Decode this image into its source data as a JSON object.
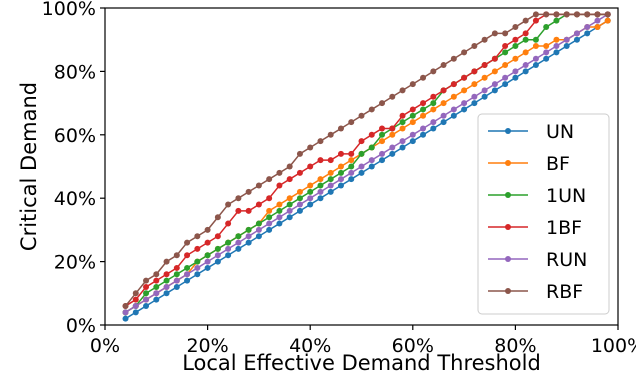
{
  "chart_data": {
    "type": "line",
    "title": "",
    "xlabel": "Local Effective Demand Threshold",
    "ylabel": "Critical Demand",
    "xlim": [
      0,
      1
    ],
    "ylim": [
      0,
      1
    ],
    "x_ticks": [
      0,
      0.2,
      0.4,
      0.6,
      0.8,
      1.0
    ],
    "x_tick_labels": [
      "0%",
      "20%",
      "40%",
      "60%",
      "80%",
      "100%"
    ],
    "y_ticks": [
      0,
      0.2,
      0.4,
      0.6,
      0.8,
      1.0
    ],
    "y_tick_labels": [
      "0%",
      "20%",
      "40%",
      "60%",
      "80%",
      "100%"
    ],
    "grid": false,
    "legend_position": "lower-right",
    "x": [
      0.04,
      0.06,
      0.08,
      0.1,
      0.12,
      0.14,
      0.16,
      0.18,
      0.2,
      0.22,
      0.24,
      0.26,
      0.28,
      0.3,
      0.32,
      0.34,
      0.36,
      0.38,
      0.4,
      0.42,
      0.44,
      0.46,
      0.48,
      0.5,
      0.52,
      0.54,
      0.56,
      0.58,
      0.6,
      0.62,
      0.64,
      0.66,
      0.68,
      0.7,
      0.72,
      0.74,
      0.76,
      0.78,
      0.8,
      0.82,
      0.84,
      0.86,
      0.88,
      0.9,
      0.92,
      0.94,
      0.96,
      0.98
    ],
    "series": [
      {
        "name": "UN",
        "color": "#1f77b4",
        "values": [
          0.02,
          0.04,
          0.06,
          0.08,
          0.1,
          0.12,
          0.14,
          0.16,
          0.18,
          0.2,
          0.22,
          0.24,
          0.26,
          0.28,
          0.3,
          0.32,
          0.34,
          0.36,
          0.38,
          0.4,
          0.42,
          0.44,
          0.46,
          0.48,
          0.5,
          0.52,
          0.54,
          0.56,
          0.58,
          0.6,
          0.62,
          0.64,
          0.66,
          0.68,
          0.7,
          0.72,
          0.74,
          0.76,
          0.78,
          0.8,
          0.82,
          0.84,
          0.86,
          0.88,
          0.9,
          0.92,
          0.94,
          0.96
        ]
      },
      {
        "name": "BF",
        "color": "#ff7f0e",
        "values": [
          0.04,
          0.06,
          0.08,
          0.1,
          0.12,
          0.14,
          0.16,
          0.2,
          0.22,
          0.24,
          0.26,
          0.28,
          0.3,
          0.32,
          0.36,
          0.38,
          0.4,
          0.42,
          0.44,
          0.46,
          0.48,
          0.5,
          0.52,
          0.54,
          0.56,
          0.58,
          0.6,
          0.62,
          0.64,
          0.66,
          0.68,
          0.7,
          0.72,
          0.74,
          0.76,
          0.78,
          0.8,
          0.82,
          0.84,
          0.86,
          0.88,
          0.88,
          0.9,
          0.9,
          0.92,
          0.94,
          0.94,
          0.96
        ]
      },
      {
        "name": "1UN",
        "color": "#2ca02c",
        "values": [
          0.04,
          0.06,
          0.1,
          0.12,
          0.14,
          0.16,
          0.18,
          0.2,
          0.22,
          0.24,
          0.26,
          0.28,
          0.3,
          0.32,
          0.34,
          0.36,
          0.38,
          0.4,
          0.42,
          0.44,
          0.46,
          0.48,
          0.5,
          0.54,
          0.56,
          0.6,
          0.62,
          0.64,
          0.66,
          0.68,
          0.7,
          0.74,
          0.76,
          0.78,
          0.8,
          0.82,
          0.84,
          0.86,
          0.88,
          0.9,
          0.9,
          0.94,
          0.96,
          0.98,
          0.98,
          0.98,
          0.98,
          0.98
        ]
      },
      {
        "name": "1BF",
        "color": "#d62728",
        "values": [
          0.06,
          0.08,
          0.12,
          0.14,
          0.16,
          0.18,
          0.22,
          0.24,
          0.26,
          0.28,
          0.32,
          0.36,
          0.36,
          0.38,
          0.4,
          0.44,
          0.46,
          0.48,
          0.5,
          0.52,
          0.52,
          0.54,
          0.54,
          0.58,
          0.6,
          0.62,
          0.62,
          0.66,
          0.68,
          0.7,
          0.72,
          0.74,
          0.76,
          0.78,
          0.8,
          0.82,
          0.84,
          0.88,
          0.9,
          0.92,
          0.96,
          0.98,
          0.98,
          0.98,
          0.98,
          0.98,
          0.98,
          0.98
        ]
      },
      {
        "name": "RUN",
        "color": "#9467bd",
        "values": [
          0.04,
          0.06,
          0.08,
          0.1,
          0.12,
          0.14,
          0.16,
          0.18,
          0.2,
          0.22,
          0.24,
          0.26,
          0.28,
          0.3,
          0.32,
          0.34,
          0.36,
          0.38,
          0.4,
          0.42,
          0.44,
          0.46,
          0.48,
          0.5,
          0.52,
          0.54,
          0.56,
          0.58,
          0.6,
          0.62,
          0.64,
          0.66,
          0.68,
          0.7,
          0.72,
          0.74,
          0.76,
          0.78,
          0.8,
          0.82,
          0.84,
          0.86,
          0.88,
          0.9,
          0.92,
          0.94,
          0.96,
          0.98
        ]
      },
      {
        "name": "RBF",
        "color": "#8c564b",
        "values": [
          0.06,
          0.1,
          0.14,
          0.16,
          0.2,
          0.22,
          0.26,
          0.28,
          0.3,
          0.34,
          0.38,
          0.4,
          0.42,
          0.44,
          0.46,
          0.48,
          0.5,
          0.54,
          0.56,
          0.58,
          0.6,
          0.62,
          0.64,
          0.66,
          0.68,
          0.7,
          0.72,
          0.74,
          0.76,
          0.78,
          0.8,
          0.82,
          0.84,
          0.86,
          0.88,
          0.9,
          0.92,
          0.92,
          0.94,
          0.96,
          0.98,
          0.98,
          0.98,
          0.98,
          0.98,
          0.98,
          0.98,
          0.98
        ]
      }
    ]
  }
}
